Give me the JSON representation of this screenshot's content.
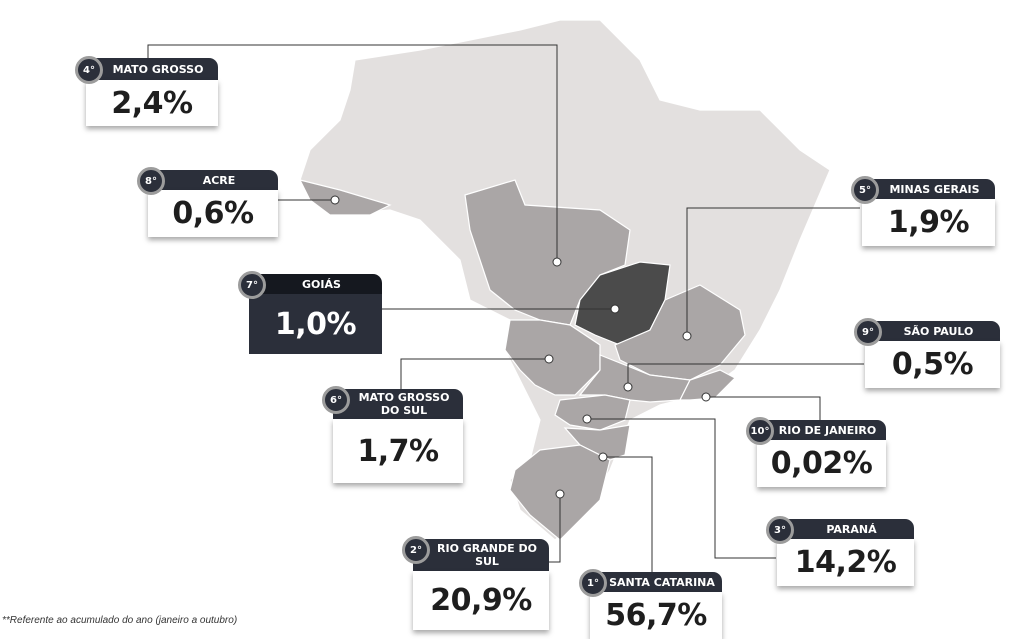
{
  "colors": {
    "land": "#e3e0df",
    "highlight": "#aaa6a6",
    "goias": "#4b4b4b",
    "card_header": "#2b2f3a"
  },
  "states": [
    {
      "rank": "4°",
      "name": "MATO GROSSO",
      "value": "2,4%"
    },
    {
      "rank": "8°",
      "name": "ACRE",
      "value": "0,6%"
    },
    {
      "rank": "5°",
      "name": "MINAS GERAIS",
      "value": "1,9%"
    },
    {
      "rank": "7°",
      "name": "GOIÁS",
      "value": "1,0%"
    },
    {
      "rank": "9°",
      "name": "SÃO PAULO",
      "value": "0,5%"
    },
    {
      "rank": "6°",
      "name": "MATO GROSSO DO SUL",
      "value": "1,7%"
    },
    {
      "rank": "10°",
      "name": "RIO DE JANEIRO",
      "value": "0,02%"
    },
    {
      "rank": "3°",
      "name": "PARANÁ",
      "value": "14,2%"
    },
    {
      "rank": "2°",
      "name": "RIO GRANDE DO SUL",
      "value": "20,9%"
    },
    {
      "rank": "1°",
      "name": "SANTA CATARINA",
      "value": "56,7%"
    }
  ],
  "footnote": "**Referente  ao acumulado do ano (janeiro a outubro)"
}
